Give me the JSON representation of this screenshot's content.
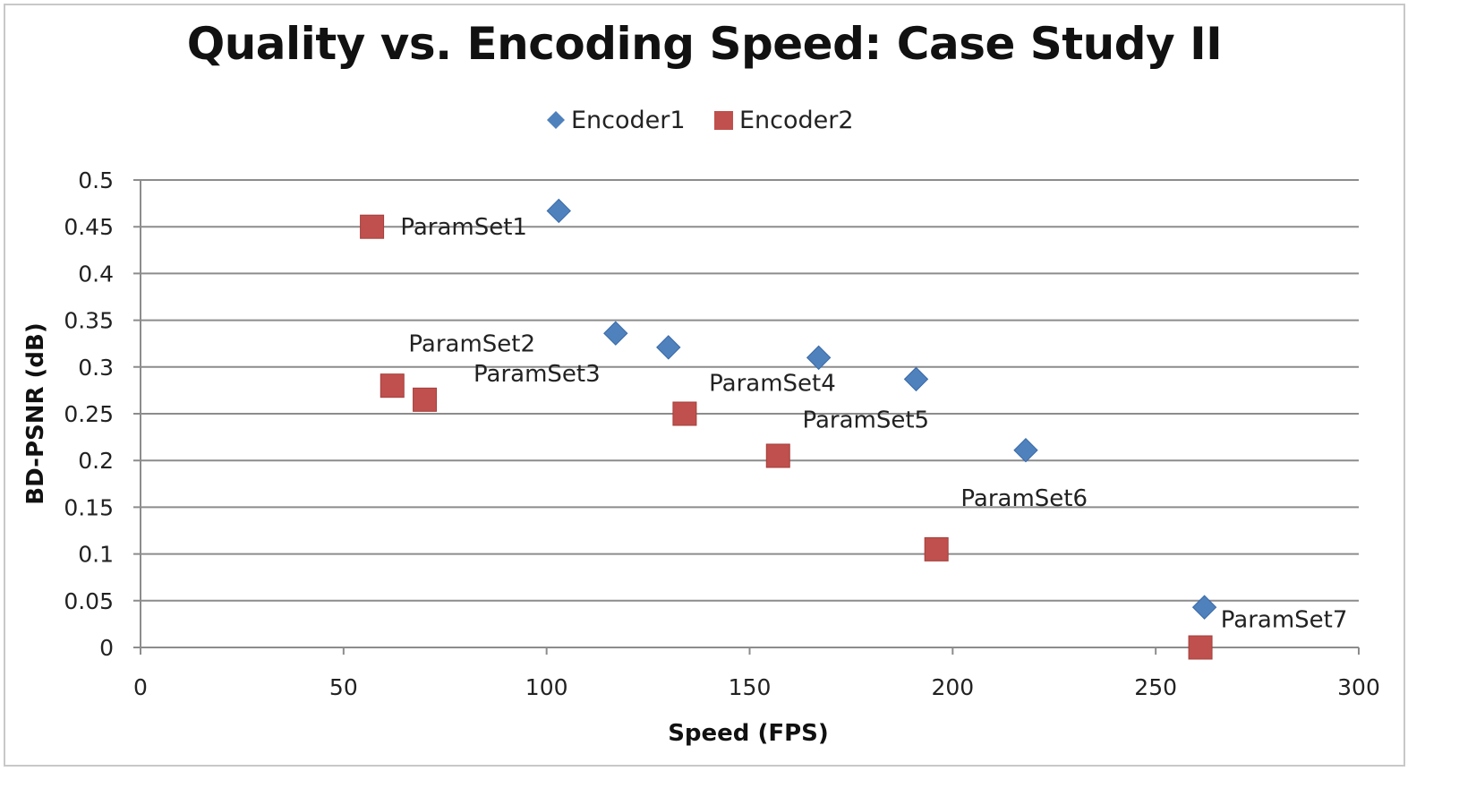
{
  "chart_data": {
    "type": "scatter",
    "title": "Quality vs. Encoding Speed: Case Study II",
    "xlabel": "Speed (FPS)",
    "ylabel": "BD-PSNR (dB)",
    "xlim": [
      0,
      300
    ],
    "ylim": [
      0,
      0.5
    ],
    "x_ticks": [
      "0",
      "50",
      "100",
      "150",
      "200",
      "250",
      "300"
    ],
    "y_ticks": [
      "0",
      "0.05",
      "0.1",
      "0.15",
      "0.2",
      "0.25",
      "0.3",
      "0.35",
      "0.4",
      "0.45",
      "0.5"
    ],
    "grid": "horizontal",
    "legend_position": "top-center",
    "series": [
      {
        "name": "Encoder1",
        "marker": "diamond",
        "color": "#4f81bd",
        "points": [
          {
            "x": 103,
            "y": 0.467
          },
          {
            "x": 117,
            "y": 0.336
          },
          {
            "x": 130,
            "y": 0.321
          },
          {
            "x": 167,
            "y": 0.31
          },
          {
            "x": 191,
            "y": 0.287
          },
          {
            "x": 218,
            "y": 0.211
          },
          {
            "x": 262,
            "y": 0.043
          }
        ]
      },
      {
        "name": "Encoder2",
        "marker": "square",
        "color": "#c0504d",
        "points": [
          {
            "x": 57,
            "y": 0.45
          },
          {
            "x": 62,
            "y": 0.28
          },
          {
            "x": 70,
            "y": 0.265
          },
          {
            "x": 134,
            "y": 0.25
          },
          {
            "x": 157,
            "y": 0.205
          },
          {
            "x": 196,
            "y": 0.105
          },
          {
            "x": 261,
            "y": 0.0
          }
        ]
      }
    ],
    "annotations": [
      {
        "text": "ParamSet1",
        "x": 64,
        "y": 0.45
      },
      {
        "text": "ParamSet2",
        "x": 66,
        "y": 0.325
      },
      {
        "text": "ParamSet3",
        "x": 82,
        "y": 0.293
      },
      {
        "text": "ParamSet4",
        "x": 140,
        "y": 0.283
      },
      {
        "text": "ParamSet5",
        "x": 163,
        "y": 0.244
      },
      {
        "text": "ParamSet6",
        "x": 202,
        "y": 0.16
      },
      {
        "text": "ParamSet7",
        "x": 266,
        "y": 0.03
      }
    ]
  }
}
